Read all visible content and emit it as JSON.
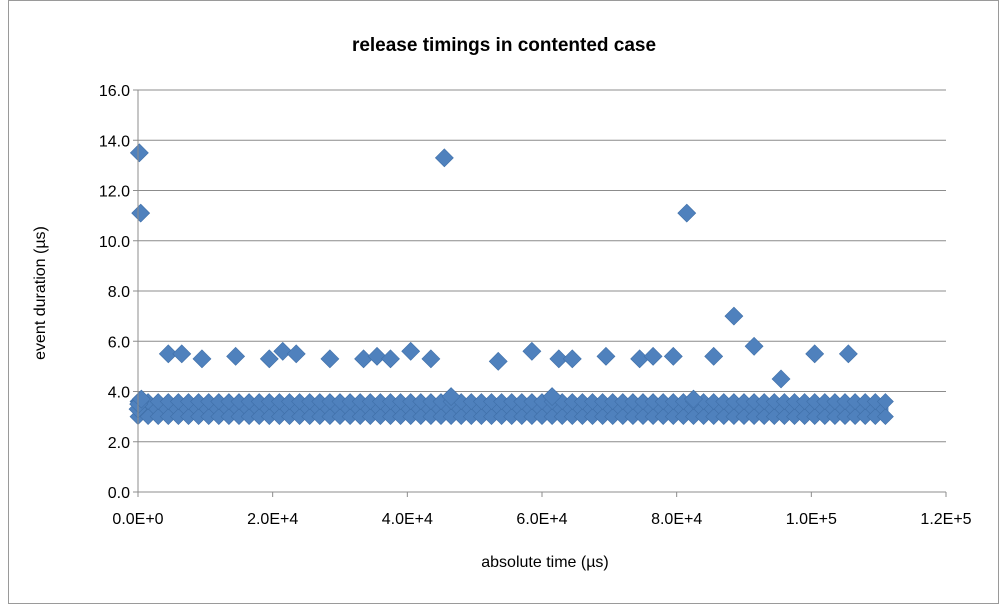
{
  "chart_data": {
    "type": "scatter",
    "title": "release timings in contented case",
    "xlabel": "absolute time (µs)",
    "ylabel": "event duration (µs)",
    "xlim": [
      0,
      120000
    ],
    "ylim": [
      0,
      16
    ],
    "xticks": [
      0,
      20000,
      40000,
      60000,
      80000,
      100000,
      120000
    ],
    "xtick_labels": [
      "0.0E+0",
      "2.0E+4",
      "4.0E+4",
      "6.0E+4",
      "8.0E+4",
      "1.0E+5",
      "1.2E+5"
    ],
    "yticks": [
      0,
      2,
      4,
      6,
      8,
      10,
      12,
      14,
      16
    ],
    "ytick_labels": [
      "0.0",
      "2.0",
      "4.0",
      "6.0",
      "8.0",
      "10.0",
      "12.0",
      "14.0",
      "16.0"
    ],
    "grid": "horizontal",
    "legend": "none",
    "marker": "diamond",
    "color": "#4f81bd",
    "dense_band": {
      "x_range": [
        0,
        111000
      ],
      "y_range": [
        3.0,
        3.6
      ]
    },
    "series": [
      {
        "x": [
          0,
          200,
          400,
          300,
          100,
          500,
          4500,
          6500,
          9500,
          14500,
          19500,
          21500,
          23500,
          28500,
          33500,
          35500,
          37500,
          40500,
          43500,
          45500,
          46500,
          53500,
          58500,
          61500,
          62500,
          64500,
          69500,
          74500,
          76500,
          79500,
          81500,
          82500,
          85500,
          88500,
          91500,
          95500,
          100500,
          105500
        ],
        "y": [
          3.3,
          13.5,
          11.1,
          3.6,
          3.5,
          3.7,
          5.5,
          5.5,
          5.3,
          5.4,
          5.3,
          5.6,
          5.5,
          5.3,
          5.3,
          5.4,
          5.3,
          5.6,
          5.3,
          13.3,
          3.8,
          5.2,
          5.6,
          3.8,
          5.3,
          5.3,
          5.4,
          5.3,
          5.4,
          5.4,
          11.1,
          3.7,
          5.4,
          7.0,
          5.8,
          4.5,
          5.5,
          5.5
        ]
      }
    ]
  }
}
